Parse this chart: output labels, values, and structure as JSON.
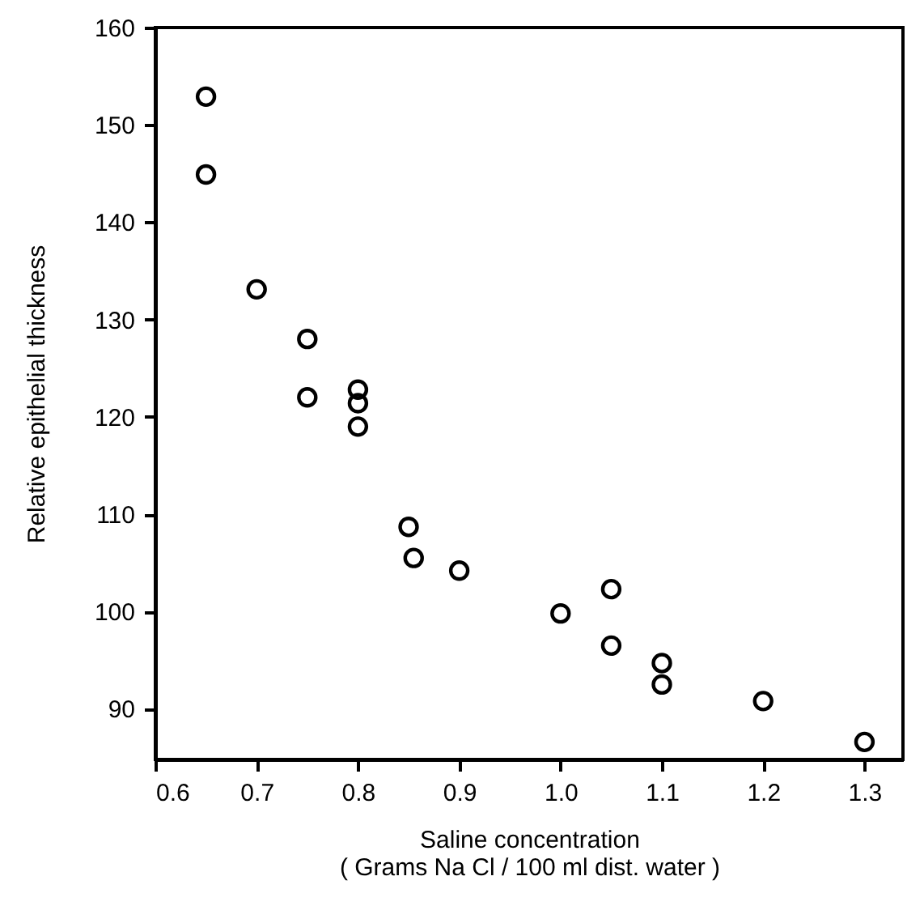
{
  "chart_data": {
    "type": "scatter",
    "xlabel": "Saline concentration\n( Grams Na Cl / 100 ml dist. water )",
    "ylabel": "Relative epithelial thickness",
    "x": [
      0.65,
      0.65,
      0.7,
      0.75,
      0.75,
      0.8,
      0.8,
      0.8,
      0.85,
      0.855,
      0.9,
      1.0,
      1.05,
      1.05,
      1.1,
      1.1,
      1.2,
      1.3
    ],
    "series": [
      {
        "color": "#000000",
        "values": [
          152.9,
          144.9,
          133.1,
          128.0,
          122.0,
          122.8,
          121.4,
          119.0,
          108.7,
          105.5,
          104.2,
          99.8,
          102.3,
          96.5,
          94.7,
          92.5,
          90.8,
          86.6
        ]
      }
    ],
    "xlim": [
      0.6,
      1.338
    ],
    "xticks": [
      {
        "value": 0.6,
        "label": "0.6"
      },
      {
        "value": 0.7,
        "label": "0.7"
      },
      {
        "value": 0.8,
        "label": "0.8"
      },
      {
        "value": 0.9,
        "label": "0.9"
      },
      {
        "value": 1.0,
        "label": "1.0"
      },
      {
        "value": 1.1,
        "label": "1.1"
      },
      {
        "value": 1.2,
        "label": "1.2"
      },
      {
        "value": 1.3,
        "label": "1.3"
      }
    ],
    "ylim": [
      84.8,
      160
    ],
    "yticks": [
      90,
      100,
      110,
      120,
      130,
      140,
      150,
      160
    ],
    "grid": false,
    "marker": "circle"
  }
}
